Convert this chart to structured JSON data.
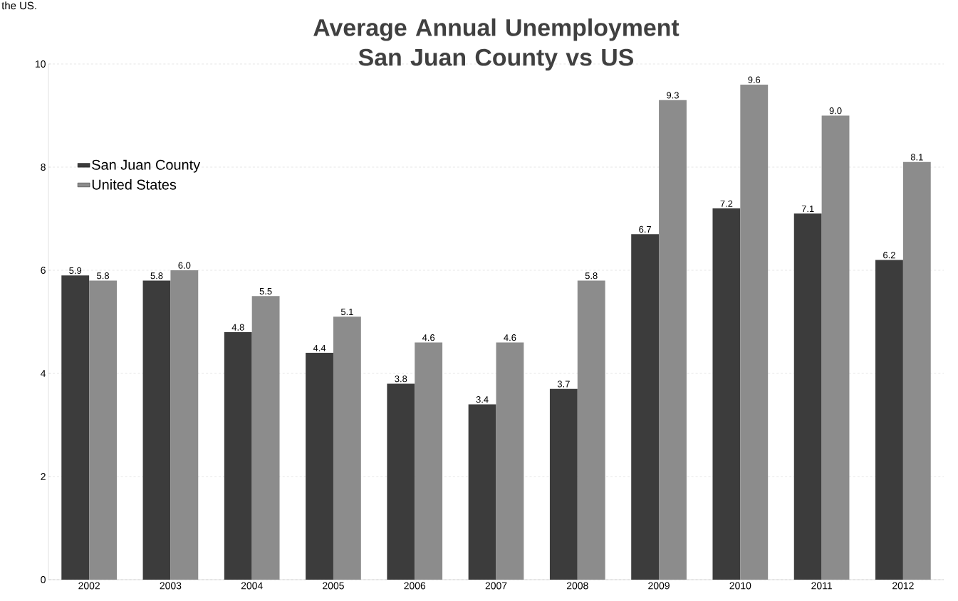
{
  "chart_data": {
    "type": "bar",
    "title": "Average Annual Unemployment San Juan County vs US",
    "annotations": [
      "the US."
    ],
    "categories": [
      "2002",
      "2003",
      "2004",
      "2005",
      "2006",
      "2007",
      "2008",
      "2009",
      "2010",
      "2011",
      "2012"
    ],
    "series": [
      {
        "name": "San Juan County",
        "color": "#3c3c3c",
        "values": [
          5.9,
          5.8,
          4.8,
          4.4,
          3.8,
          3.4,
          3.7,
          6.7,
          7.2,
          7.1,
          6.2
        ],
        "value_labels": [
          "5.9",
          "5.8",
          "4.8",
          "4.4",
          "3.8",
          "3.4",
          "3.7",
          "6.7",
          "7.2",
          "7.1",
          "6.2"
        ]
      },
      {
        "name": "United States",
        "color": "#8c8c8c",
        "values": [
          5.8,
          6.0,
          5.5,
          5.1,
          4.6,
          4.6,
          5.8,
          9.3,
          9.6,
          9.0,
          8.1
        ],
        "value_labels": [
          "5.8",
          "6.0",
          "5.5",
          "5.1",
          "4.6",
          "4.6",
          "5.8",
          "9.3",
          "9.6",
          "9.0",
          "8.1"
        ]
      }
    ],
    "ylim": [
      0,
      10
    ],
    "yticks": [
      0,
      2,
      4,
      6,
      8,
      10
    ],
    "grid": "y",
    "legend": "top left"
  }
}
